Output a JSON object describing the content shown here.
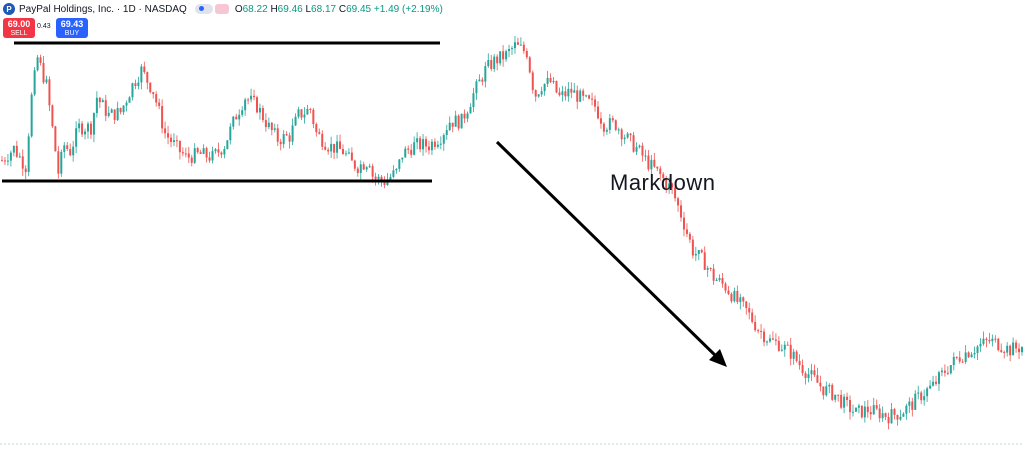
{
  "header": {
    "symbol_title": "PayPal Holdings, Inc. · 1D · NASDAQ",
    "logo_icon": "paypal-logo-icon",
    "ohlc": {
      "open_label": "O",
      "open": "68.22",
      "high_label": "H",
      "high": "69.46",
      "low_label": "L",
      "low": "68.17",
      "close_label": "C",
      "close": "69.45",
      "change": "+1.49 (+2.19%)"
    }
  },
  "trade": {
    "sell_price": "69.00",
    "sell_label": "SELL",
    "spread": "0.43",
    "buy_price": "69.43",
    "buy_label": "BUY"
  },
  "annotation": {
    "text": "Markdown"
  },
  "colors": {
    "up": "#26a69a",
    "down": "#ef5350",
    "line": "#000000",
    "baseline": "#b2dfdb"
  },
  "chart_data": {
    "type": "candlestick",
    "title": "PayPal Holdings, Inc. · 1D · NASDAQ",
    "xlabel": "",
    "ylabel": "",
    "grid": false,
    "legend": "none",
    "ylim": [
      50,
      320
    ],
    "path_points": [
      [
        0,
        240
      ],
      [
        4,
        248
      ],
      [
        8,
        236
      ],
      [
        10,
        282
      ],
      [
        12,
        308
      ],
      [
        15,
        290
      ],
      [
        19,
        232
      ],
      [
        21,
        250
      ],
      [
        23,
        246
      ],
      [
        26,
        262
      ],
      [
        30,
        262
      ],
      [
        32,
        282
      ],
      [
        36,
        270
      ],
      [
        40,
        272
      ],
      [
        44,
        290
      ],
      [
        47,
        300
      ],
      [
        51,
        286
      ],
      [
        55,
        258
      ],
      [
        59,
        248
      ],
      [
        62,
        242
      ],
      [
        67,
        244
      ],
      [
        71,
        242
      ],
      [
        75,
        250
      ],
      [
        79,
        270
      ],
      [
        82,
        282
      ],
      [
        86,
        276
      ],
      [
        90,
        262
      ],
      [
        93,
        254
      ],
      [
        97,
        256
      ],
      [
        100,
        270
      ],
      [
        104,
        274
      ],
      [
        106,
        258
      ],
      [
        110,
        250
      ],
      [
        115,
        246
      ],
      [
        118,
        238
      ],
      [
        120,
        236
      ],
      [
        124,
        240
      ],
      [
        125,
        230
      ],
      [
        126,
        228
      ],
      [
        129,
        226
      ],
      [
        133,
        232
      ],
      [
        135,
        244
      ],
      [
        139,
        250
      ],
      [
        144,
        250
      ],
      [
        148,
        256
      ],
      [
        151,
        266
      ],
      [
        155,
        266
      ],
      [
        159,
        284
      ],
      [
        163,
        300
      ],
      [
        166,
        306
      ],
      [
        170,
        310
      ],
      [
        173,
        316
      ],
      [
        177,
        312
      ],
      [
        179,
        290
      ],
      [
        180,
        284
      ],
      [
        182,
        290
      ],
      [
        185,
        292
      ],
      [
        188,
        282
      ],
      [
        192,
        286
      ],
      [
        196,
        280
      ],
      [
        200,
        276
      ],
      [
        203,
        264
      ],
      [
        207,
        264
      ],
      [
        211,
        254
      ],
      [
        214,
        248
      ],
      [
        218,
        238
      ],
      [
        222,
        230
      ],
      [
        226,
        220
      ],
      [
        229,
        204
      ],
      [
        233,
        180
      ],
      [
        237,
        172
      ],
      [
        240,
        162
      ],
      [
        244,
        156
      ],
      [
        248,
        146
      ],
      [
        251,
        140
      ],
      [
        255,
        128
      ],
      [
        259,
        120
      ],
      [
        262,
        118
      ],
      [
        266,
        112
      ],
      [
        270,
        102
      ],
      [
        273,
        96
      ],
      [
        277,
        88
      ],
      [
        281,
        84
      ],
      [
        284,
        78
      ],
      [
        288,
        72
      ],
      [
        292,
        74
      ],
      [
        296,
        72
      ],
      [
        299,
        70
      ],
      [
        303,
        72
      ],
      [
        307,
        78
      ],
      [
        310,
        84
      ],
      [
        314,
        90
      ],
      [
        318,
        100
      ],
      [
        322,
        108
      ],
      [
        325,
        112
      ],
      [
        329,
        116
      ],
      [
        333,
        120
      ],
      [
        336,
        118
      ],
      [
        340,
        114
      ],
      [
        344,
        116
      ]
    ],
    "regions": [
      {
        "name": "range-top",
        "y": 316
      },
      {
        "name": "range-bottom",
        "y": 240
      }
    ]
  }
}
